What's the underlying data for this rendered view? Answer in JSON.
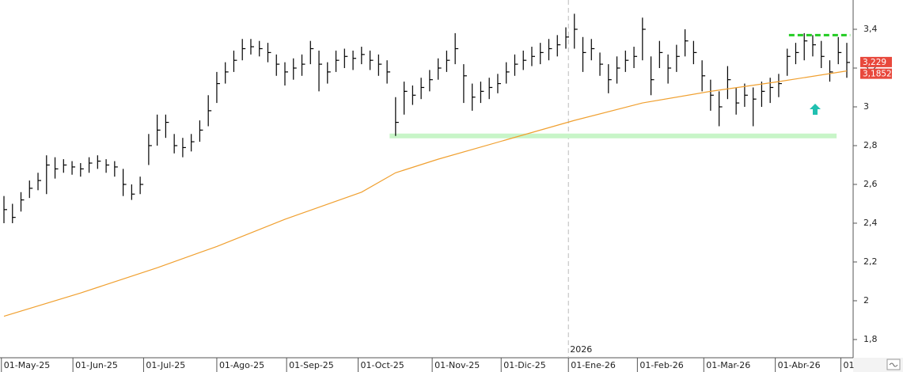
{
  "chart_data": {
    "type": "ohlc",
    "color": "#000000",
    "xlim": [
      0,
      99
    ],
    "ylim": [
      1.706,
      3.551
    ],
    "yticks": [
      {
        "value": 1.8,
        "label": "1,8"
      },
      2,
      {
        "value": 2.2,
        "label": "2,2"
      },
      {
        "value": 2.4,
        "label": "2,4"
      },
      {
        "value": 2.6,
        "label": "2,6"
      },
      {
        "value": 2.8,
        "label": "2,8"
      },
      3,
      {
        "value": 3.2,
        "label": "3,2"
      },
      {
        "value": 3.4,
        "label": "3,4"
      }
    ],
    "xticks": [
      {
        "value": -0.3,
        "label": "01-May-25"
      },
      {
        "value": 8.1,
        "label": "01-Jun-25"
      },
      {
        "value": 16.4,
        "label": "01-Jul-25"
      },
      {
        "value": 25.0,
        "label": "01-Ago-25"
      },
      {
        "value": 33.2,
        "label": "01-Sep-25"
      },
      {
        "value": 41.6,
        "label": "01-Oct-25"
      },
      {
        "value": 50.3,
        "label": "01-Nov-25"
      },
      {
        "value": 58.4,
        "label": "01-Dic-25"
      },
      {
        "value": 66.3,
        "label": "01-Ene-26"
      },
      {
        "value": 74.4,
        "label": "01-Feb-26"
      },
      {
        "value": 82.2,
        "label": "01-Mar-26"
      },
      {
        "value": 90.6,
        "label": "01-Abr-26"
      },
      {
        "value": 98.3,
        "label": "01"
      }
    ],
    "year_separator": {
      "value": 66.3,
      "label": "2026"
    },
    "close": [
      2.47,
      2.43,
      2.52,
      2.58,
      2.62,
      2.7,
      2.68,
      2.7,
      2.69,
      2.68,
      2.71,
      2.72,
      2.7,
      2.69,
      2.6,
      2.55,
      2.6,
      2.8,
      2.88,
      2.92,
      2.8,
      2.79,
      2.82,
      2.88,
      2.98,
      3.12,
      3.18,
      3.24,
      3.3,
      3.31,
      3.3,
      3.28,
      3.22,
      3.18,
      3.2,
      3.22,
      3.3,
      3.22,
      3.18,
      3.24,
      3.26,
      3.25,
      3.27,
      3.24,
      3.22,
      3.18,
      2.92,
      3.08,
      3.06,
      3.1,
      3.14,
      3.2,
      3.24,
      3.3,
      3.16,
      3.05,
      3.08,
      3.1,
      3.12,
      3.18,
      3.22,
      3.24,
      3.26,
      3.28,
      3.3,
      3.32,
      3.36,
      3.4,
      3.28,
      3.3,
      3.22,
      3.14,
      3.2,
      3.24,
      3.26,
      3.4,
      3.14,
      3.28,
      3.2,
      3.26,
      3.34,
      3.28,
      3.16,
      3.06,
      3.0,
      3.14,
      3.02,
      3.06,
      3.04,
      3.08,
      3.1,
      3.12,
      3.26,
      3.28,
      3.34,
      3.32,
      3.26,
      3.18,
      3.28,
      3.229
    ],
    "high": [
      2.54,
      2.5,
      2.56,
      2.62,
      2.66,
      2.75,
      2.74,
      2.73,
      2.72,
      2.71,
      2.74,
      2.75,
      2.73,
      2.72,
      2.68,
      2.6,
      2.64,
      2.86,
      2.96,
      2.96,
      2.86,
      2.84,
      2.86,
      2.93,
      3.06,
      3.18,
      3.23,
      3.29,
      3.35,
      3.35,
      3.34,
      3.33,
      3.27,
      3.23,
      3.25,
      3.27,
      3.34,
      3.29,
      3.23,
      3.29,
      3.3,
      3.29,
      3.31,
      3.29,
      3.27,
      3.24,
      3.05,
      3.13,
      3.11,
      3.15,
      3.19,
      3.25,
      3.29,
      3.38,
      3.22,
      3.12,
      3.13,
      3.15,
      3.17,
      3.23,
      3.27,
      3.29,
      3.31,
      3.33,
      3.35,
      3.37,
      3.41,
      3.48,
      3.36,
      3.35,
      3.28,
      3.22,
      3.26,
      3.29,
      3.31,
      3.46,
      3.26,
      3.34,
      3.27,
      3.32,
      3.4,
      3.34,
      3.24,
      3.14,
      3.08,
      3.21,
      3.1,
      3.12,
      3.1,
      3.13,
      3.15,
      3.17,
      3.3,
      3.33,
      3.38,
      3.37,
      3.34,
      3.24,
      3.36,
      3.33
    ],
    "low": [
      2.4,
      2.4,
      2.46,
      2.53,
      2.57,
      2.55,
      2.63,
      2.66,
      2.65,
      2.64,
      2.66,
      2.68,
      2.66,
      2.64,
      2.54,
      2.52,
      2.55,
      2.7,
      2.8,
      2.84,
      2.76,
      2.74,
      2.77,
      2.82,
      2.9,
      3.02,
      3.12,
      3.18,
      3.24,
      3.27,
      3.26,
      3.23,
      3.16,
      3.11,
      3.14,
      3.16,
      3.22,
      3.08,
      3.12,
      3.18,
      3.2,
      3.19,
      3.22,
      3.19,
      3.16,
      3.12,
      2.85,
      2.96,
      3.01,
      3.04,
      3.08,
      3.14,
      3.18,
      3.22,
      3.02,
      2.98,
      3.02,
      3.04,
      3.07,
      3.12,
      3.16,
      3.19,
      3.21,
      3.22,
      3.24,
      3.26,
      3.3,
      3.3,
      3.18,
      3.24,
      3.16,
      3.07,
      3.12,
      3.18,
      3.2,
      3.24,
      3.06,
      3.2,
      3.12,
      3.18,
      3.26,
      3.22,
      3.08,
      2.98,
      2.9,
      3.04,
      2.96,
      3.0,
      2.9,
      3.0,
      3.02,
      3.05,
      3.16,
      3.22,
      3.24,
      3.26,
      3.2,
      3.13,
      3.22,
      3.15
    ],
    "moving_average": {
      "color": "#f0a030",
      "x": [
        0,
        9,
        18,
        25,
        33,
        42,
        46,
        51,
        59,
        67,
        75,
        83,
        91,
        99
      ],
      "values": [
        1.92,
        2.04,
        2.17,
        2.28,
        2.42,
        2.56,
        2.66,
        2.73,
        2.83,
        2.93,
        3.02,
        3.08,
        3.13,
        3.1852
      ]
    },
    "support": {
      "value": 2.85,
      "x": [
        45.3,
        97.8
      ],
      "color": "#c8f5c8"
    },
    "resistance": {
      "value": 3.37,
      "x": [
        92.2,
        99.4
      ],
      "color": "#22cc22"
    },
    "last_price": {
      "value": 3.229,
      "label": "3,229"
    },
    "average_price": {
      "value": 3.1852,
      "label": "3,1852"
    }
  }
}
